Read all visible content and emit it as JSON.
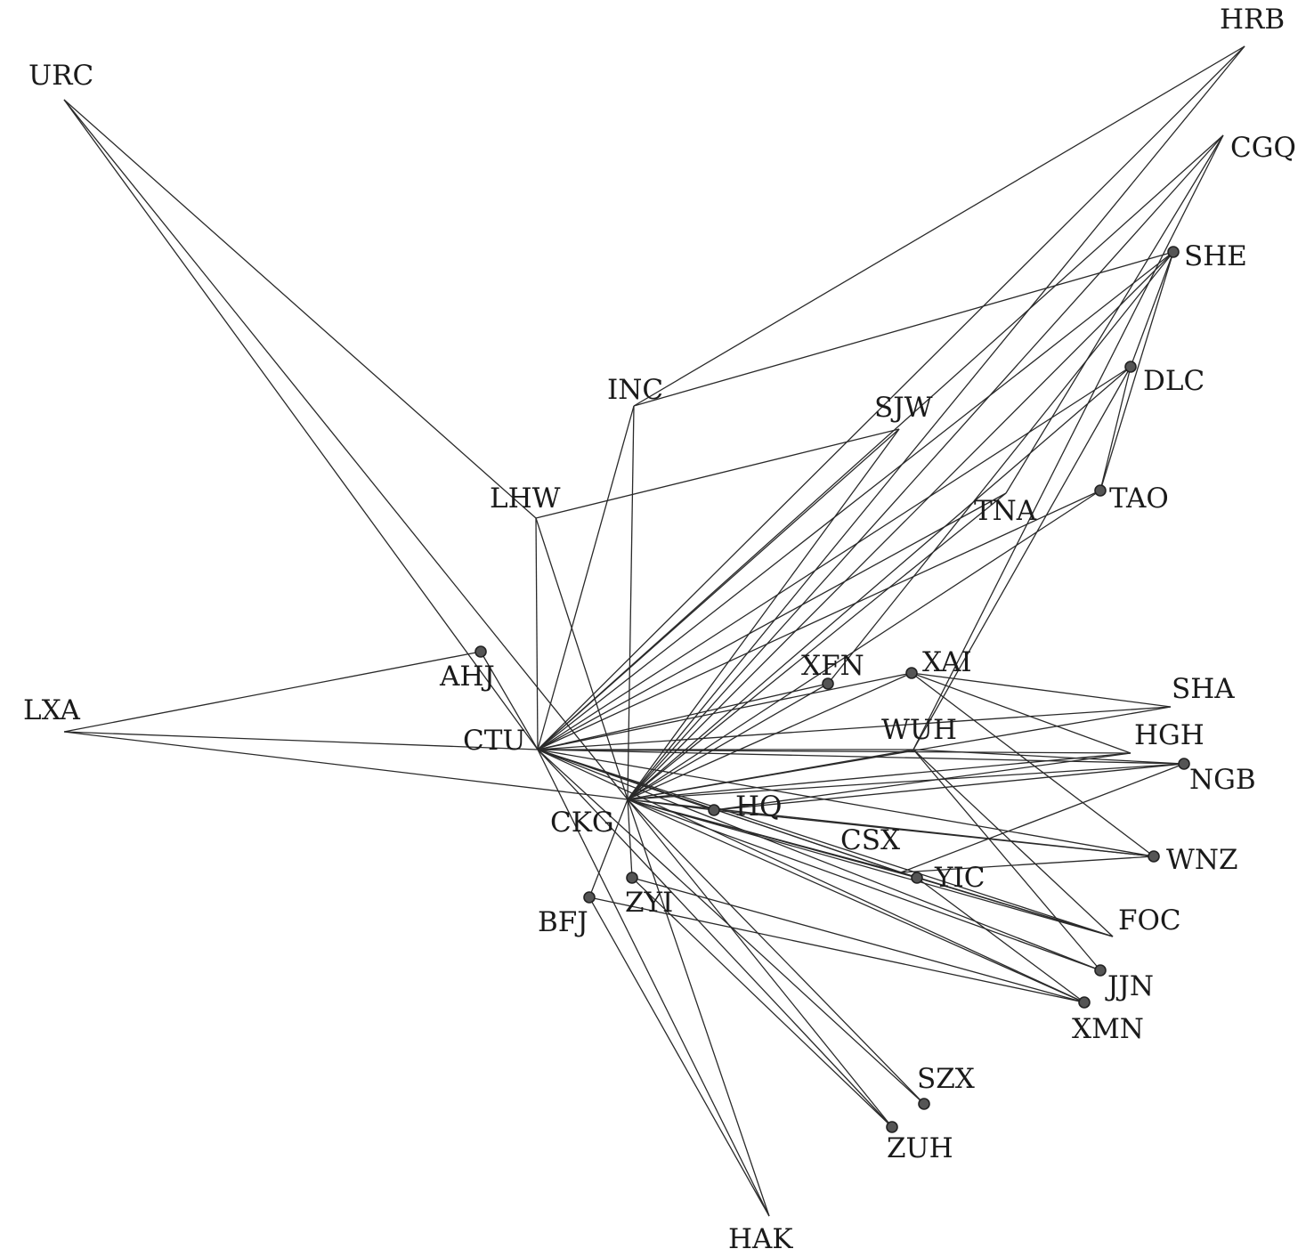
{
  "diagram": {
    "colors": {
      "edge": "#2a2a2a",
      "node": "#555555",
      "text": "#1a1a1a"
    },
    "nodes": [
      {
        "id": "HRB",
        "label": "HRB",
        "dot": false
      },
      {
        "id": "URC",
        "label": "URC",
        "dot": false
      },
      {
        "id": "CGQ",
        "label": "CGQ",
        "dot": false
      },
      {
        "id": "SHE",
        "label": "SHE",
        "dot": true
      },
      {
        "id": "DLC",
        "label": "DLC",
        "dot": true
      },
      {
        "id": "INC",
        "label": "INC",
        "dot": false
      },
      {
        "id": "SJW",
        "label": "SJW",
        "dot": false
      },
      {
        "id": "LHW",
        "label": "LHW",
        "dot": false
      },
      {
        "id": "TNA",
        "label": "TNA",
        "dot": false
      },
      {
        "id": "TAO",
        "label": "TAO",
        "dot": true
      },
      {
        "id": "AHJ",
        "label": "AHJ",
        "dot": true
      },
      {
        "id": "XFN",
        "label": "XFN",
        "dot": true
      },
      {
        "id": "XAI",
        "label": "XAI",
        "dot": true
      },
      {
        "id": "LXA",
        "label": "LXA",
        "dot": false
      },
      {
        "id": "SHA",
        "label": "SHA",
        "dot": false
      },
      {
        "id": "CTU",
        "label": "CTU",
        "dot": false
      },
      {
        "id": "WUH",
        "label": "WUH",
        "dot": false
      },
      {
        "id": "HGH",
        "label": "HGH",
        "dot": false
      },
      {
        "id": "NGB",
        "label": "NGB",
        "dot": true
      },
      {
        "id": "HQ",
        "label": "HQ",
        "dot": true
      },
      {
        "id": "CKG",
        "label": "CKG",
        "dot": false
      },
      {
        "id": "CSX",
        "label": "CSX",
        "dot": false
      },
      {
        "id": "WNZ",
        "label": "WNZ",
        "dot": true
      },
      {
        "id": "YIC",
        "label": "YIC",
        "dot": true
      },
      {
        "id": "ZYI",
        "label": "ZYI",
        "dot": true
      },
      {
        "id": "BFJ",
        "label": "BFJ",
        "dot": true
      },
      {
        "id": "FOC",
        "label": "FOC",
        "dot": false
      },
      {
        "id": "JJN",
        "label": "JJN",
        "dot": true
      },
      {
        "id": "XMN",
        "label": "XMN",
        "dot": true
      },
      {
        "id": "SZX",
        "label": "SZX",
        "dot": true
      },
      {
        "id": "ZUH",
        "label": "ZUH",
        "dot": true
      },
      {
        "id": "HAK",
        "label": "HAK",
        "dot": false
      }
    ],
    "edges": [
      [
        "URC",
        "LHW"
      ],
      [
        "URC",
        "CTU"
      ],
      [
        "URC",
        "CKG"
      ],
      [
        "LXA",
        "AHJ"
      ],
      [
        "LXA",
        "CTU"
      ],
      [
        "LXA",
        "CKG"
      ],
      [
        "AHJ",
        "CTU"
      ],
      [
        "INC",
        "HRB"
      ],
      [
        "INC",
        "SHE"
      ],
      [
        "INC",
        "CTU"
      ],
      [
        "INC",
        "CKG"
      ],
      [
        "LHW",
        "SJW"
      ],
      [
        "LHW",
        "CTU"
      ],
      [
        "LHW",
        "CKG"
      ],
      [
        "CTU",
        "HRB"
      ],
      [
        "CTU",
        "CGQ"
      ],
      [
        "CTU",
        "SHE"
      ],
      [
        "CTU",
        "DLC"
      ],
      [
        "CTU",
        "SJW"
      ],
      [
        "CTU",
        "TNA"
      ],
      [
        "CTU",
        "TAO"
      ],
      [
        "CTU",
        "XFN"
      ],
      [
        "CTU",
        "XAI"
      ],
      [
        "CTU",
        "SHA"
      ],
      [
        "CTU",
        "WUH"
      ],
      [
        "CTU",
        "HGH"
      ],
      [
        "CTU",
        "NGB"
      ],
      [
        "CTU",
        "HQ"
      ],
      [
        "CTU",
        "CSX"
      ],
      [
        "CTU",
        "WNZ"
      ],
      [
        "CTU",
        "YIC"
      ],
      [
        "CTU",
        "FOC"
      ],
      [
        "CTU",
        "JJN"
      ],
      [
        "CTU",
        "XMN"
      ],
      [
        "CTU",
        "SZX"
      ],
      [
        "CTU",
        "ZUH"
      ],
      [
        "CTU",
        "HAK"
      ],
      [
        "CKG",
        "HRB"
      ],
      [
        "CKG",
        "CGQ"
      ],
      [
        "CKG",
        "SHE"
      ],
      [
        "CKG",
        "DLC"
      ],
      [
        "CKG",
        "SJW"
      ],
      [
        "CKG",
        "TNA"
      ],
      [
        "CKG",
        "TAO"
      ],
      [
        "CKG",
        "XFN"
      ],
      [
        "CKG",
        "XAI"
      ],
      [
        "CKG",
        "SHA"
      ],
      [
        "CKG",
        "WUH"
      ],
      [
        "CKG",
        "HGH"
      ],
      [
        "CKG",
        "NGB"
      ],
      [
        "CKG",
        "HQ"
      ],
      [
        "CKG",
        "CSX"
      ],
      [
        "CKG",
        "WNZ"
      ],
      [
        "CKG",
        "YIC"
      ],
      [
        "CKG",
        "FOC"
      ],
      [
        "CKG",
        "JJN"
      ],
      [
        "CKG",
        "XMN"
      ],
      [
        "CKG",
        "SZX"
      ],
      [
        "CKG",
        "ZUH"
      ],
      [
        "CKG",
        "HAK"
      ],
      [
        "CKG",
        "BFJ"
      ],
      [
        "CKG",
        "ZYI"
      ],
      [
        "SHE",
        "DLC"
      ],
      [
        "SHE",
        "TAO"
      ],
      [
        "SHE",
        "XFN"
      ],
      [
        "CGQ",
        "TNA"
      ],
      [
        "CGQ",
        "WUH"
      ],
      [
        "DLC",
        "TAO"
      ],
      [
        "DLC",
        "WUH"
      ],
      [
        "XAI",
        "SHA"
      ],
      [
        "XAI",
        "WNZ"
      ],
      [
        "XAI",
        "HGH"
      ],
      [
        "WUH",
        "NGB"
      ],
      [
        "WUH",
        "FOC"
      ],
      [
        "WUH",
        "JJN"
      ],
      [
        "HQ",
        "NGB"
      ],
      [
        "HQ",
        "HGH"
      ],
      [
        "HQ",
        "WNZ"
      ],
      [
        "CSX",
        "NGB"
      ],
      [
        "CSX",
        "FOC"
      ],
      [
        "CSX",
        "WNZ"
      ],
      [
        "YIC",
        "XMN"
      ],
      [
        "YIC",
        "FOC"
      ],
      [
        "BFJ",
        "XMN"
      ],
      [
        "BFJ",
        "HAK"
      ],
      [
        "ZYI",
        "ZUH"
      ],
      [
        "ZYI",
        "XMN"
      ]
    ]
  }
}
